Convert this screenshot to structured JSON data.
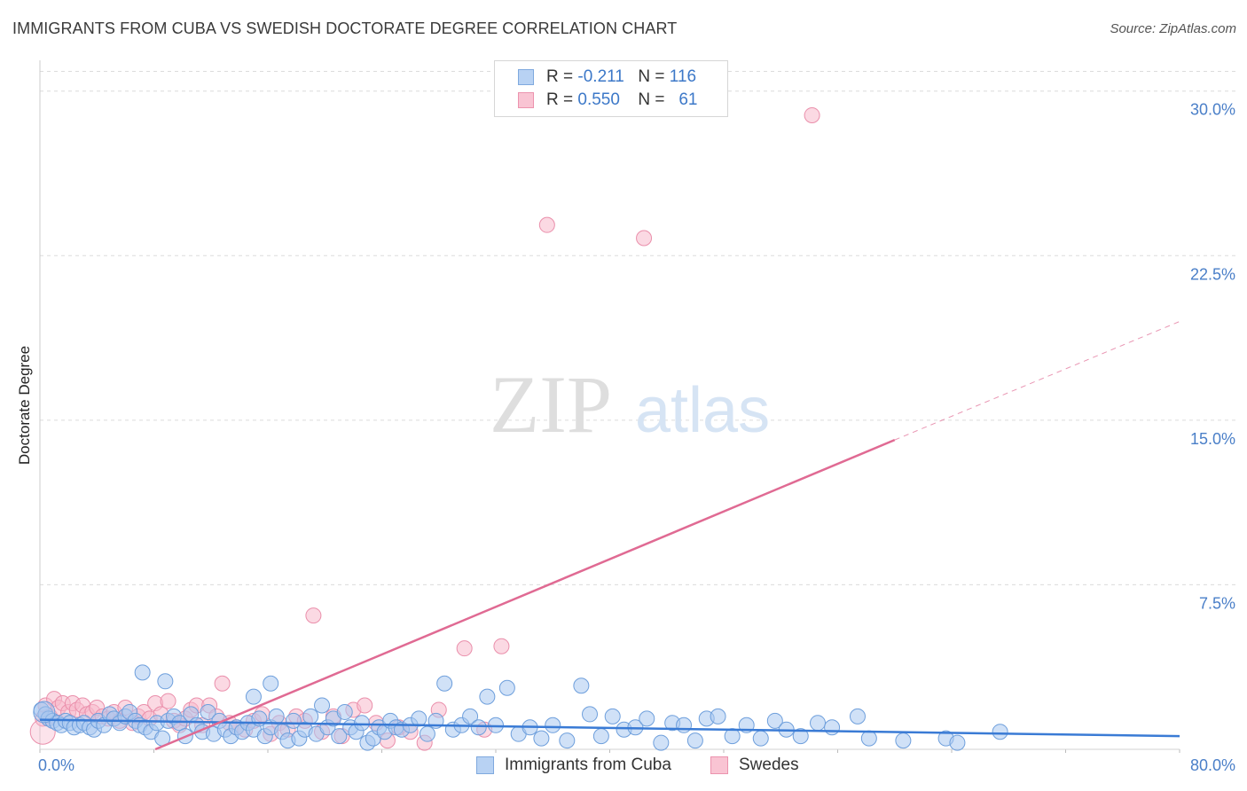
{
  "title": "IMMIGRANTS FROM CUBA VS SWEDISH DOCTORATE DEGREE CORRELATION CHART",
  "source": "Source: ZipAtlas.com",
  "watermark": {
    "zip": "ZIP",
    "atlas": "atlas"
  },
  "legend_top": {
    "rows": [
      {
        "r_label": "R =",
        "r_value": "-0.211",
        "n_label": "N =",
        "n_value": "116"
      },
      {
        "r_label": "R =",
        "r_value": "0.550",
        "n_label": "N =",
        "n_value": "61"
      }
    ]
  },
  "colors": {
    "blue_fill": "#a9c8f0",
    "blue_stroke": "#6e9fdc",
    "blue_line": "#3a7bd5",
    "pink_fill": "#f7b9cc",
    "pink_stroke": "#ea8fab",
    "pink_line": "#e06a93",
    "grid": "#dcdcdc",
    "axis_label": "#4a7fc8"
  },
  "chart_data": {
    "type": "scatter",
    "title": "IMMIGRANTS FROM CUBA VS SWEDISH DOCTORATE DEGREE CORRELATION CHART",
    "xlabel": "",
    "ylabel": "Doctorate Degree",
    "xlim": [
      0,
      80
    ],
    "ylim": [
      0,
      31
    ],
    "x_tick_labels": [
      "0.0%",
      "80.0%"
    ],
    "y_ticks": [
      7.5,
      15.0,
      22.5,
      30.0
    ],
    "y_tick_labels": [
      "7.5%",
      "15.0%",
      "22.5%",
      "30.0%"
    ],
    "grid": true,
    "legend_position": "bottom-center",
    "series": [
      {
        "name": "Immigrants from Cuba",
        "R": -0.211,
        "N": 116,
        "trend": {
          "x0": 0,
          "y0": 1.35,
          "x1": 80,
          "y1": 0.6
        },
        "points": [
          [
            0.1,
            1.8
          ],
          [
            0.4,
            1.6
          ],
          [
            0.6,
            1.4
          ],
          [
            0.9,
            1.3
          ],
          [
            1.2,
            1.2
          ],
          [
            1.5,
            1.1
          ],
          [
            1.8,
            1.3
          ],
          [
            2.1,
            1.2
          ],
          [
            2.4,
            1.0
          ],
          [
            2.8,
            1.1
          ],
          [
            3.1,
            1.2
          ],
          [
            3.5,
            1.0
          ],
          [
            3.8,
            0.9
          ],
          [
            4.1,
            1.3
          ],
          [
            4.5,
            1.1
          ],
          [
            4.9,
            1.6
          ],
          [
            5.2,
            1.4
          ],
          [
            5.6,
            1.2
          ],
          [
            6.0,
            1.5
          ],
          [
            6.3,
            1.7
          ],
          [
            6.7,
            1.3
          ],
          [
            7.0,
            1.1
          ],
          [
            7.4,
            1.0
          ],
          [
            7.8,
            0.8
          ],
          [
            8.2,
            1.2
          ],
          [
            8.6,
            0.5
          ],
          [
            9.0,
            1.3
          ],
          [
            9.4,
            1.5
          ],
          [
            9.8,
            1.2
          ],
          [
            10.2,
            0.6
          ],
          [
            10.6,
            1.6
          ],
          [
            11.0,
            1.1
          ],
          [
            11.4,
            0.8
          ],
          [
            11.8,
            1.7
          ],
          [
            12.2,
            0.7
          ],
          [
            12.6,
            1.3
          ],
          [
            13.0,
            0.9
          ],
          [
            13.4,
            0.6
          ],
          [
            13.8,
            1.0
          ],
          [
            14.2,
            0.8
          ],
          [
            14.6,
            1.2
          ],
          [
            15.0,
            0.9
          ],
          [
            15.4,
            1.4
          ],
          [
            15.8,
            0.6
          ],
          [
            16.2,
            1.0
          ],
          [
            16.6,
            1.5
          ],
          [
            17.0,
            0.8
          ],
          [
            17.4,
            0.4
          ],
          [
            17.8,
            1.3
          ],
          [
            18.2,
            0.5
          ],
          [
            18.6,
            0.9
          ],
          [
            19.0,
            1.5
          ],
          [
            19.4,
            0.7
          ],
          [
            19.8,
            2.0
          ],
          [
            20.2,
            1.0
          ],
          [
            20.6,
            1.4
          ],
          [
            21.0,
            0.6
          ],
          [
            21.4,
            1.7
          ],
          [
            21.8,
            1.0
          ],
          [
            22.2,
            0.8
          ],
          [
            22.6,
            1.2
          ],
          [
            23.0,
            0.3
          ],
          [
            23.4,
            0.5
          ],
          [
            23.8,
            1.0
          ],
          [
            24.2,
            0.8
          ],
          [
            24.6,
            1.3
          ],
          [
            25.0,
            1.0
          ],
          [
            25.4,
            0.9
          ],
          [
            26.0,
            1.1
          ],
          [
            26.6,
            1.4
          ],
          [
            27.2,
            0.7
          ],
          [
            27.8,
            1.3
          ],
          [
            28.4,
            3.0
          ],
          [
            29.0,
            0.9
          ],
          [
            29.6,
            1.1
          ],
          [
            30.2,
            1.5
          ],
          [
            30.8,
            1.0
          ],
          [
            31.4,
            2.4
          ],
          [
            32.0,
            1.1
          ],
          [
            32.8,
            2.8
          ],
          [
            33.6,
            0.7
          ],
          [
            34.4,
            1.0
          ],
          [
            35.2,
            0.5
          ],
          [
            36.0,
            1.1
          ],
          [
            37.0,
            0.4
          ],
          [
            38.0,
            2.9
          ],
          [
            38.6,
            1.6
          ],
          [
            39.4,
            0.6
          ],
          [
            40.2,
            1.5
          ],
          [
            41.0,
            0.9
          ],
          [
            41.8,
            1.0
          ],
          [
            42.6,
            1.4
          ],
          [
            43.6,
            0.3
          ],
          [
            44.4,
            1.2
          ],
          [
            45.2,
            1.1
          ],
          [
            46.0,
            0.4
          ],
          [
            46.8,
            1.4
          ],
          [
            47.6,
            1.5
          ],
          [
            48.6,
            0.6
          ],
          [
            49.6,
            1.1
          ],
          [
            50.6,
            0.5
          ],
          [
            51.6,
            1.3
          ],
          [
            52.4,
            0.9
          ],
          [
            53.4,
            0.6
          ],
          [
            54.6,
            1.2
          ],
          [
            55.6,
            1.0
          ],
          [
            57.4,
            1.5
          ],
          [
            58.2,
            0.5
          ],
          [
            60.6,
            0.4
          ],
          [
            63.6,
            0.5
          ],
          [
            64.4,
            0.3
          ],
          [
            67.4,
            0.8
          ],
          [
            8.8,
            3.1
          ],
          [
            7.2,
            3.5
          ],
          [
            16.2,
            3.0
          ],
          [
            15.0,
            2.4
          ]
        ]
      },
      {
        "name": "Swedes",
        "R": 0.55,
        "N": 61,
        "trend": {
          "x0": 0,
          "y0": -2.2,
          "x1": 60,
          "y1": 14.1,
          "dashed_x1": 80,
          "dashed_y1": 19.5
        },
        "points": [
          [
            0.2,
            1.4
          ],
          [
            0.4,
            2.0
          ],
          [
            0.7,
            1.5
          ],
          [
            1.0,
            2.3
          ],
          [
            1.3,
            1.9
          ],
          [
            1.6,
            2.1
          ],
          [
            2.0,
            1.7
          ],
          [
            2.3,
            2.1
          ],
          [
            2.6,
            1.8
          ],
          [
            3.0,
            2.0
          ],
          [
            3.3,
            1.6
          ],
          [
            3.7,
            1.7
          ],
          [
            4.0,
            1.9
          ],
          [
            4.4,
            1.5
          ],
          [
            4.8,
            1.4
          ],
          [
            5.2,
            1.7
          ],
          [
            5.6,
            1.3
          ],
          [
            6.0,
            1.9
          ],
          [
            6.5,
            1.2
          ],
          [
            6.9,
            1.5
          ],
          [
            7.3,
            1.7
          ],
          [
            7.7,
            1.4
          ],
          [
            8.1,
            2.1
          ],
          [
            8.5,
            1.6
          ],
          [
            9.0,
            2.2
          ],
          [
            9.4,
            1.3
          ],
          [
            9.8,
            1.1
          ],
          [
            10.2,
            1.4
          ],
          [
            10.6,
            1.8
          ],
          [
            11.0,
            2.0
          ],
          [
            11.4,
            1.1
          ],
          [
            11.9,
            2.0
          ],
          [
            12.4,
            1.5
          ],
          [
            12.8,
            3.0
          ],
          [
            13.3,
            1.2
          ],
          [
            13.8,
            1.0
          ],
          [
            14.4,
            0.9
          ],
          [
            15.0,
            1.3
          ],
          [
            15.6,
            1.6
          ],
          [
            16.2,
            0.7
          ],
          [
            16.8,
            1.2
          ],
          [
            17.4,
            0.9
          ],
          [
            18.0,
            1.5
          ],
          [
            18.6,
            1.3
          ],
          [
            19.2,
            6.1
          ],
          [
            19.8,
            0.8
          ],
          [
            20.6,
            1.5
          ],
          [
            21.2,
            0.6
          ],
          [
            22.0,
            1.8
          ],
          [
            22.8,
            2.0
          ],
          [
            23.6,
            1.2
          ],
          [
            24.4,
            0.4
          ],
          [
            25.2,
            1.0
          ],
          [
            26.0,
            0.8
          ],
          [
            27.0,
            0.3
          ],
          [
            28.0,
            1.8
          ],
          [
            29.8,
            4.6
          ],
          [
            31.2,
            0.9
          ],
          [
            32.4,
            4.7
          ],
          [
            35.6,
            23.9
          ],
          [
            54.2,
            28.9
          ]
        ]
      }
    ]
  },
  "legend_bottom": {
    "items": [
      {
        "label": "Immigrants from Cuba"
      },
      {
        "label": "Swedes"
      }
    ]
  },
  "extra_pink_point": [
    42.4,
    23.3
  ]
}
